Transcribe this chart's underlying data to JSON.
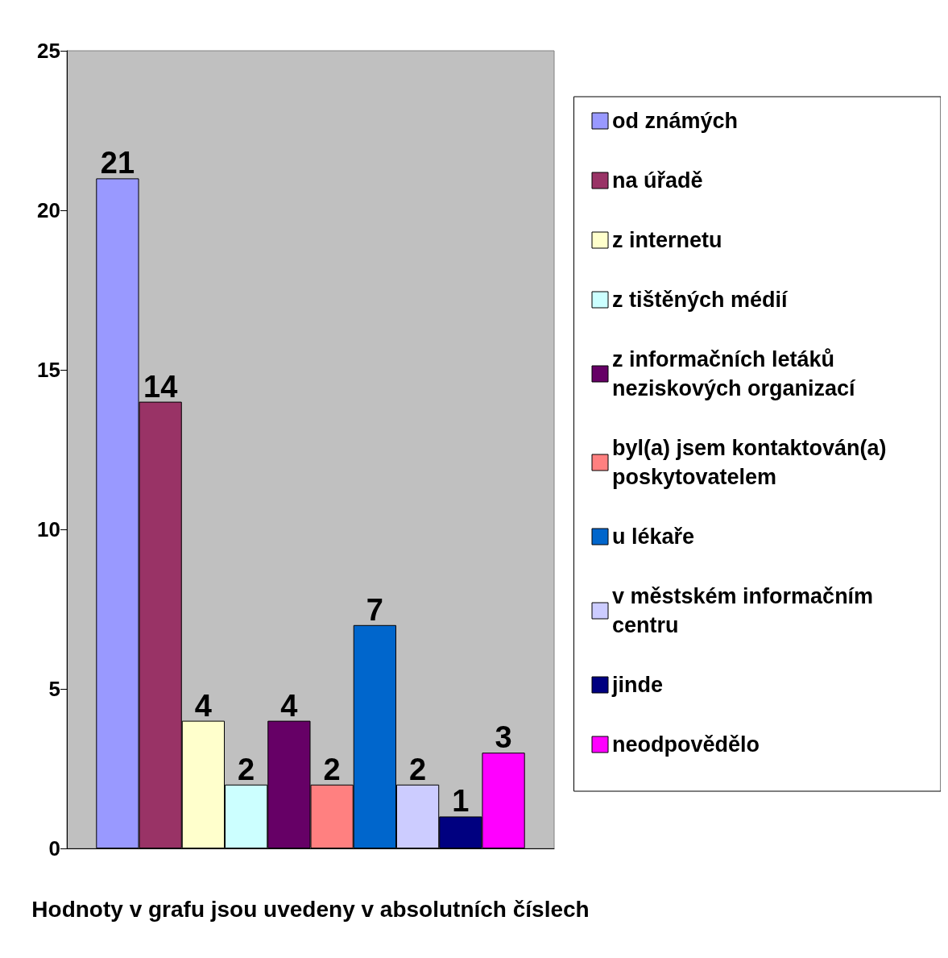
{
  "chart_data": {
    "type": "bar",
    "xlabel": "Hodnoty v grafu jsou uvedeny v absolutních číslech",
    "categories": [
      null
    ],
    "ylim": [
      0,
      25
    ],
    "yticks": [
      0,
      5,
      10,
      15,
      20,
      25
    ],
    "grid": false,
    "legend": "right",
    "data_labels": true,
    "series": [
      {
        "name": "od známých",
        "color": "#9999ff",
        "values": [
          21
        ]
      },
      {
        "name": "na úřadě",
        "color": "#993366",
        "values": [
          14
        ]
      },
      {
        "name": "z internetu",
        "color": "#ffffcc",
        "values": [
          4
        ]
      },
      {
        "name": "z tištěných médií",
        "color": "#ccffff",
        "values": [
          2
        ]
      },
      {
        "name": "z informačních letáků neziskových organizací",
        "color": "#660066",
        "values": [
          4
        ]
      },
      {
        "name": "byl(a) jsem kontaktován(a) poskytovatelem",
        "color": "#ff8080",
        "values": [
          2
        ]
      },
      {
        "name": "u lékaře",
        "color": "#0066cc",
        "values": [
          7
        ]
      },
      {
        "name": "v městském informačním centru",
        "color": "#ccccff",
        "values": [
          2
        ]
      },
      {
        "name": "jinde",
        "color": "#000080",
        "values": [
          1
        ]
      },
      {
        "name": "neodpovědělo",
        "color": "#ff00ff",
        "values": [
          3
        ]
      }
    ]
  }
}
